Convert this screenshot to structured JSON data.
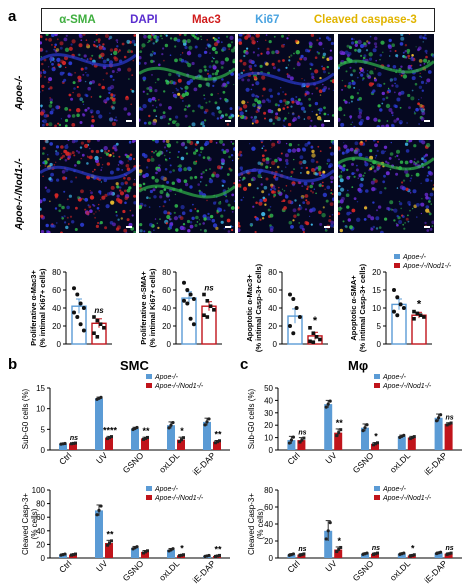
{
  "panel_a": {
    "letter": "a",
    "stains": [
      {
        "label": "α-SMA",
        "color": "#3fae3f"
      },
      {
        "label": "DAPI",
        "color": "#5a2ecf"
      },
      {
        "label": "Mac3",
        "color": "#d01c1c"
      },
      {
        "label": "Ki67",
        "color": "#4aa3e0"
      },
      {
        "label": "Cleaved caspase-3",
        "color": "#e0b400"
      }
    ],
    "rows": [
      "Apoe-/-",
      "Apoe-/-/Nod1-/-"
    ]
  },
  "panel_b": {
    "letter": "b",
    "title": "SMC"
  },
  "panel_c": {
    "letter": "c",
    "title": "Mφ"
  },
  "legend": {
    "apoe": "Apoe-/-",
    "nod1": "Apoe-/-/Nod1-/-"
  },
  "colors": {
    "apoe": "#5b9bd5",
    "nod1": "#c0141b",
    "dark": "#8a0f14"
  },
  "chart_data": [
    {
      "id": "a1",
      "type": "bar",
      "ylabel": "Proliferative α-Mac3+\n(% intimal Ki67+ cells)",
      "categories": [
        "Apoe-/-",
        "Apoe-/-/Nod1-/-"
      ],
      "yticks": [
        "0",
        "20",
        "40",
        "60",
        "80"
      ],
      "ylim": [
        0,
        80
      ],
      "values": [
        42,
        23
      ],
      "errors": [
        8,
        5
      ],
      "points": [
        [
          62,
          55,
          45,
          40,
          35,
          30,
          22,
          15
        ],
        [
          30,
          26,
          22,
          18,
          12,
          8
        ]
      ],
      "annotation": "ns"
    },
    {
      "id": "a2",
      "type": "bar",
      "ylabel": "Proliferative α-SMA+\n(% intimal Ki67+ cells)",
      "categories": [
        "Apoe-/-",
        "Apoe-/-/Nod1-/-"
      ],
      "yticks": [
        "0",
        "20",
        "40",
        "60",
        "80"
      ],
      "ylim": [
        0,
        80
      ],
      "values": [
        51,
        42
      ],
      "errors": [
        7,
        5
      ],
      "points": [
        [
          68,
          60,
          55,
          50,
          48,
          45,
          28,
          22
        ],
        [
          55,
          48,
          42,
          38,
          32,
          30
        ]
      ],
      "annotation": "ns"
    },
    {
      "id": "a3",
      "type": "bar",
      "ylabel": "Apoptotic α-Mac3+\n(% intimal Casp-3+ cells)",
      "categories": [
        "Apoe-/-",
        "Apoe-/-/Nod1-/-"
      ],
      "yticks": [
        "0",
        "20",
        "40",
        "60",
        "80"
      ],
      "ylim": [
        0,
        80
      ],
      "values": [
        31,
        9
      ],
      "errors": [
        8,
        4
      ],
      "points": [
        [
          55,
          50,
          40,
          30,
          20,
          12
        ],
        [
          18,
          12,
          8,
          5,
          3,
          2
        ]
      ],
      "annotation": "*"
    },
    {
      "id": "a4",
      "type": "bar",
      "ylabel": "Apoptotic α-SMA+\n(% intimal Casp-3+ cells)",
      "categories": [
        "Apoe-/-",
        "Apoe-/-/Nod1-/-"
      ],
      "yticks": [
        "0",
        "5",
        "10",
        "15",
        "20"
      ],
      "ylim": [
        0,
        20
      ],
      "values": [
        11,
        8
      ],
      "errors": [
        1.5,
        0.8
      ],
      "points": [
        [
          15,
          13,
          11,
          10,
          9,
          8
        ],
        [
          9,
          8.5,
          8,
          7.5,
          7
        ]
      ],
      "annotation": "*"
    },
    {
      "id": "b1",
      "type": "bar",
      "ylabel": "Sub-G0 cells (%)",
      "categories": [
        "Ctrl",
        "UV",
        "GSNO",
        "oxLDL",
        "iE-DAP"
      ],
      "yticks": [
        "0",
        "5",
        "10",
        "15"
      ],
      "ylim": [
        0,
        15
      ],
      "series": [
        {
          "name": "Apoe-/-",
          "values": [
            1.5,
            12.5,
            5.2,
            6.0,
            6.8
          ],
          "errors": [
            0.1,
            0.3,
            0.3,
            0.8,
            0.9
          ]
        },
        {
          "name": "Apoe-/-/Nod1-/-",
          "values": [
            1.6,
            3.0,
            2.8,
            2.5,
            2.0
          ],
          "errors": [
            0.1,
            0.3,
            0.3,
            0.6,
            0.3
          ]
        }
      ],
      "annotations": [
        "ns",
        "****",
        "**",
        "*",
        "**"
      ]
    },
    {
      "id": "b2",
      "type": "bar",
      "ylabel": "Cleaved Casp-3+\n(% cells)",
      "categories": [
        "Ctrl",
        "UV",
        "GSNO",
        "oxLDL",
        "iE-DAP"
      ],
      "yticks": [
        "0",
        "20",
        "40",
        "60",
        "80",
        "100"
      ],
      "ylim": [
        0,
        100
      ],
      "series": [
        {
          "name": "Apoe-/-",
          "values": [
            5,
            70,
            15,
            12,
            3
          ],
          "errors": [
            1,
            8,
            2,
            2,
            1
          ]
        },
        {
          "name": "Apoe-/-/Nod1-/-",
          "values": [
            5,
            22,
            9,
            4,
            3
          ],
          "errors": [
            1,
            4,
            2,
            1,
            1
          ]
        }
      ],
      "annotations": [
        "",
        "**",
        "",
        "*",
        "**"
      ]
    },
    {
      "id": "c1",
      "type": "bar",
      "ylabel": "Sub-G0 cells (%)",
      "categories": [
        "Ctrl",
        "UV",
        "GSNO",
        "oxLDL",
        "iE-DAP"
      ],
      "yticks": [
        "0",
        "10",
        "20",
        "30",
        "40",
        "50"
      ],
      "ylim": [
        0,
        50
      ],
      "series": [
        {
          "name": "Apoe-/-",
          "values": [
            8,
            37,
            18,
            11,
            26
          ],
          "errors": [
            3,
            3,
            3,
            1,
            3
          ]
        },
        {
          "name": "Apoe-/-/Nod1-/-",
          "values": [
            8,
            14,
            5,
            10,
            21
          ],
          "errors": [
            2,
            3,
            1,
            1,
            1
          ]
        }
      ],
      "annotations": [
        "ns",
        "**",
        "*",
        "",
        "ns"
      ]
    },
    {
      "id": "c2",
      "type": "bar",
      "ylabel": "Cleaved Casp-3+\n(% cells)",
      "categories": [
        "Ctrl",
        "UV",
        "GSNO",
        "oxLDL",
        "iE-DAP"
      ],
      "yticks": [
        "0",
        "20",
        "40",
        "60",
        "80"
      ],
      "ylim": [
        0,
        80
      ],
      "series": [
        {
          "name": "Apoe-/-",
          "values": [
            4,
            32,
            5,
            5,
            6
          ],
          "errors": [
            1,
            12,
            1,
            1,
            1
          ]
        },
        {
          "name": "Apoe-/-/Nod1-/-",
          "values": [
            4,
            10,
            5,
            3,
            5
          ],
          "errors": [
            1,
            3,
            1,
            1,
            1
          ]
        }
      ],
      "annotations": [
        "ns",
        "*",
        "ns",
        "*",
        "ns"
      ]
    }
  ]
}
